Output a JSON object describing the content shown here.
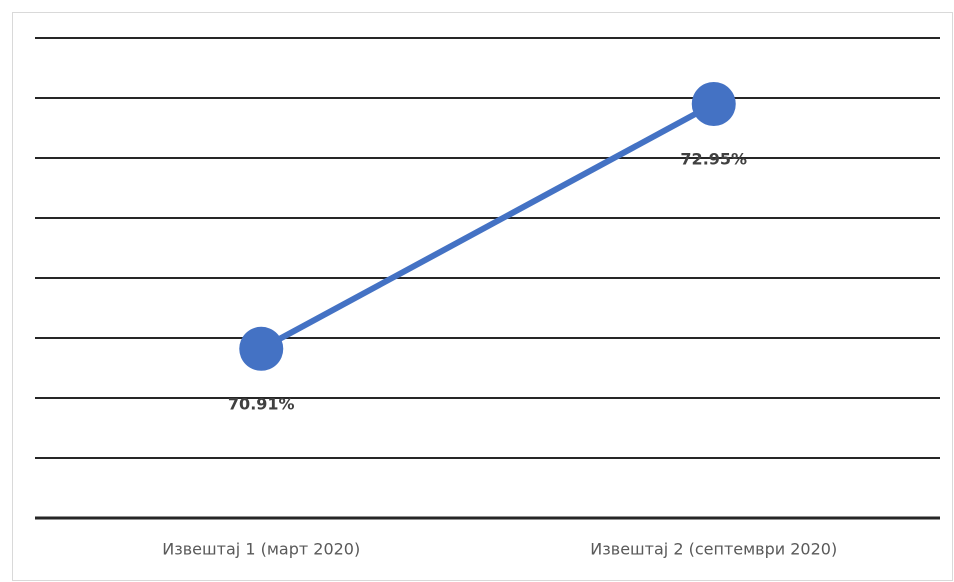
{
  "chart_data": {
    "type": "line",
    "categories": [
      "Извештај 1 (март 2020)",
      "Извештај 2 (септември 2020)"
    ],
    "series": [
      {
        "color": "#4472c4",
        "values": [
          70.91,
          72.95
        ],
        "value_labels": [
          "70.91%",
          "72.95%"
        ]
      }
    ],
    "ylim": [
      69.5,
      73.5
    ],
    "yticks": [
      69.5,
      70,
      70.5,
      71,
      71.5,
      72,
      72.5,
      73,
      73.5
    ],
    "grid": true
  }
}
